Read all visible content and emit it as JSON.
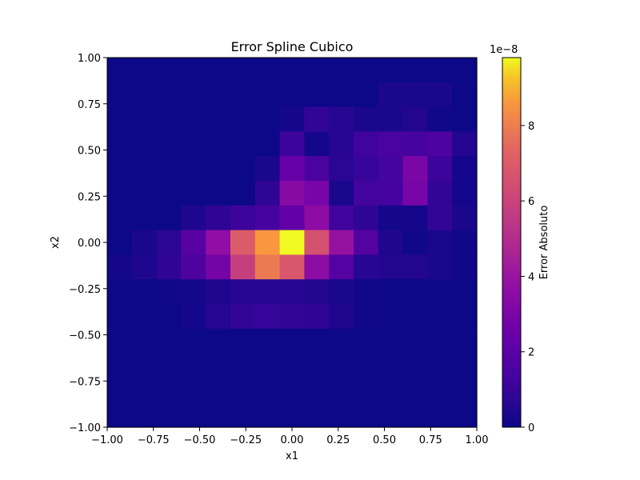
{
  "chart_data": {
    "type": "heatmap",
    "title": "Error Spline Cubico",
    "xlabel": "x1",
    "ylabel": "x2",
    "xlim": [
      -1.0,
      1.0
    ],
    "ylim": [
      -1.0,
      1.0
    ],
    "x_ticks": [
      "−1.00",
      "−0.75",
      "−0.50",
      "−0.25",
      "0.00",
      "0.25",
      "0.50",
      "0.75",
      "1.00"
    ],
    "y_ticks": [
      "−1.00",
      "−0.75",
      "−0.50",
      "−0.25",
      "0.00",
      "0.25",
      "0.50",
      "0.75",
      "1.00"
    ],
    "colorbar": {
      "label": "Error Absoluto",
      "offset_text": "1e−8",
      "range": [
        0,
        9.8
      ],
      "ticks": [
        "0",
        "2",
        "4",
        "6",
        "8"
      ],
      "colormap": "plasma"
    },
    "grid_rows": 15,
    "grid_cols": 15,
    "values_top_to_bottom": [
      [
        0,
        0,
        0,
        0,
        0,
        0,
        0,
        0,
        0,
        0,
        0,
        0,
        0,
        0,
        0
      ],
      [
        0,
        0,
        0,
        0,
        0,
        0,
        0,
        0,
        0,
        0,
        0,
        0.3,
        0.3,
        0.3,
        0
      ],
      [
        0,
        0,
        0,
        0,
        0,
        0,
        0,
        0.2,
        0.9,
        0.6,
        0.3,
        0.3,
        0.5,
        0.1,
        0
      ],
      [
        0,
        0,
        0,
        0,
        0,
        0,
        0,
        1.1,
        0.2,
        0.6,
        1.2,
        1.5,
        1.4,
        1.6,
        0.5
      ],
      [
        0,
        0,
        0,
        0,
        0,
        0,
        0.3,
        2.4,
        1.5,
        0.7,
        1.0,
        1.3,
        3.0,
        1.1,
        0.2
      ],
      [
        0,
        0,
        0,
        0,
        0,
        0,
        0.8,
        3.4,
        2.9,
        0.3,
        1.3,
        1.4,
        2.9,
        0.9,
        0.2
      ],
      [
        0,
        0,
        0,
        0.4,
        0.8,
        1.1,
        1.4,
        2.2,
        3.6,
        1.2,
        0.8,
        0.2,
        0.2,
        0.9,
        0.3
      ],
      [
        0,
        0.3,
        0.7,
        1.9,
        3.7,
        7.0,
        8.6,
        9.8,
        6.6,
        3.9,
        1.8,
        0.4,
        0.1,
        0.3,
        0.1
      ],
      [
        0.2,
        0.4,
        0.8,
        1.6,
        2.8,
        5.8,
        7.9,
        6.8,
        3.6,
        1.8,
        0.6,
        0.5,
        0.5,
        0.3,
        0.1
      ],
      [
        0,
        0,
        0.1,
        0.2,
        0.4,
        0.6,
        0.6,
        0.6,
        0.5,
        0.3,
        0.1,
        0,
        0,
        0,
        0
      ],
      [
        0,
        0,
        0,
        0.2,
        0.6,
        0.9,
        1.0,
        0.9,
        0.8,
        0.4,
        0.1,
        0,
        0,
        0,
        0
      ],
      [
        0,
        0,
        0,
        0,
        0,
        0,
        0,
        0,
        0,
        0,
        0,
        0,
        0,
        0,
        0
      ],
      [
        0,
        0,
        0,
        0,
        0,
        0,
        0,
        0,
        0,
        0,
        0,
        0,
        0,
        0,
        0
      ],
      [
        0,
        0,
        0,
        0,
        0,
        0,
        0,
        0,
        0,
        0,
        0,
        0,
        0,
        0,
        0
      ],
      [
        0,
        0,
        0,
        0,
        0,
        0,
        0,
        0,
        0,
        0,
        0,
        0,
        0,
        0,
        0
      ]
    ]
  }
}
